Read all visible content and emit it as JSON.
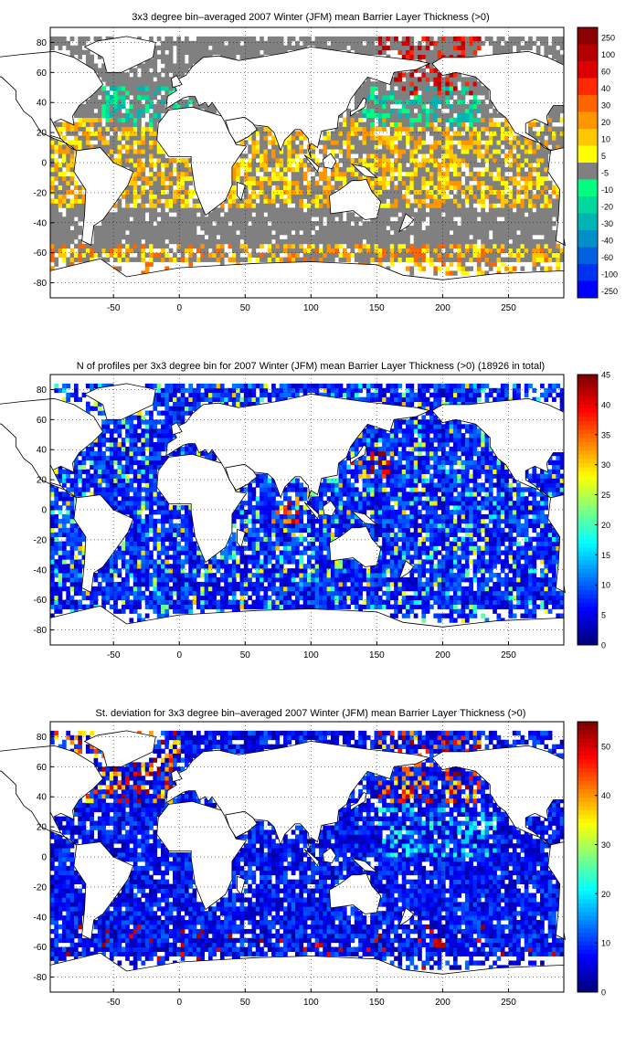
{
  "figure": {
    "panels": [
      {
        "id": "mean-blt",
        "title": "3x3 degree bin–averaged 2007 Winter (JFM) mean Barrier Layer Thickness (>0)",
        "xticks": [
          "-50",
          "0",
          "50",
          "100",
          "150",
          "200",
          "250"
        ],
        "xtick_values": [
          -50,
          0,
          50,
          100,
          150,
          200,
          250
        ],
        "yticks": [
          "80",
          "60",
          "40",
          "20",
          "0",
          "-20",
          "-40",
          "-60",
          "-80"
        ],
        "ytick_values": [
          80,
          60,
          40,
          20,
          0,
          -20,
          -40,
          -60,
          -80
        ],
        "xlim": [
          -98,
          292
        ],
        "ylim": [
          -90,
          90
        ],
        "colorbar": {
          "type": "discrete",
          "labels": [
            "250",
            "100",
            "60",
            "40",
            "30",
            "20",
            "10",
            "5",
            "-5",
            "-10",
            "-20",
            "-30",
            "-40",
            "-60",
            "-100",
            "-250"
          ],
          "colors": [
            "#8b0000",
            "#b40000",
            "#dc0000",
            "#ff2800",
            "#ff6400",
            "#ff9600",
            "#ffc800",
            "#ffff00",
            "#808080",
            "#00ff80",
            "#00d8a0",
            "#00b4b4",
            "#0090c8",
            "#0060e0",
            "#0030f0",
            "#0000ff"
          ]
        }
      },
      {
        "id": "profile-count",
        "title": "N of profiles per 3x3 degree bin for 2007 Winter (JFM) mean Barrier Layer Thickness (>0) (18926 in total)",
        "xticks": [
          "-50",
          "0",
          "50",
          "100",
          "150",
          "200",
          "250"
        ],
        "xtick_values": [
          -50,
          0,
          50,
          100,
          150,
          200,
          250
        ],
        "yticks": [
          "80",
          "60",
          "40",
          "20",
          "0",
          "-20",
          "-40",
          "-60",
          "-80"
        ],
        "ytick_values": [
          80,
          60,
          40,
          20,
          0,
          -20,
          -40,
          -60,
          -80
        ],
        "xlim": [
          -98,
          292
        ],
        "ylim": [
          -90,
          90
        ],
        "colorbar": {
          "type": "continuous",
          "labels": [
            "45",
            "40",
            "35",
            "30",
            "25",
            "20",
            "15",
            "10",
            "5",
            "0"
          ],
          "values": [
            45,
            40,
            35,
            30,
            25,
            20,
            15,
            10,
            5,
            0
          ],
          "range": [
            0,
            45
          ]
        }
      },
      {
        "id": "std-dev",
        "title": "St. deviation for 3x3 degree bin–averaged 2007 Winter (JFM) mean Barrier Layer Thickness (>0)",
        "xticks": [
          "-50",
          "0",
          "50",
          "100",
          "150",
          "200",
          "250"
        ],
        "xtick_values": [
          -50,
          0,
          50,
          100,
          150,
          200,
          250
        ],
        "yticks": [
          "80",
          "60",
          "40",
          "20",
          "0",
          "-20",
          "-40",
          "-60",
          "-80"
        ],
        "ytick_values": [
          80,
          60,
          40,
          20,
          0,
          -20,
          -40,
          -60,
          -80
        ],
        "xlim": [
          -98,
          292
        ],
        "ylim": [
          -90,
          90
        ],
        "colorbar": {
          "type": "continuous",
          "labels": [
            "50",
            "40",
            "30",
            "20",
            "10",
            "0"
          ],
          "values": [
            50,
            40,
            30,
            20,
            10,
            0
          ],
          "range": [
            0,
            55
          ]
        }
      }
    ],
    "colors": {
      "jet_dark_blue": "#00008f",
      "jet_blue": "#0000ff",
      "jet_cyan": "#00ffff",
      "jet_yellow": "#ffff00",
      "jet_red": "#ff0000",
      "jet_dark_red": "#800000",
      "land": "#ffffff",
      "coast": "#000000",
      "gray_bin": "#808080"
    }
  }
}
